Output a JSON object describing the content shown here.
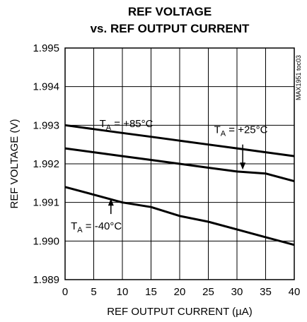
{
  "chart_data": {
    "type": "line",
    "title_line1": "REF VOLTAGE",
    "title_line2": "vs. REF OUTPUT CURRENT",
    "xlabel": "REF OUTPUT CURRENT (µA)",
    "ylabel": "REF VOLTAGE (V)",
    "xlim": [
      0,
      40
    ],
    "ylim": [
      1.989,
      1.995
    ],
    "x_ticks": [
      0,
      5,
      10,
      15,
      20,
      25,
      30,
      35,
      40
    ],
    "y_ticks": [
      1.989,
      1.99,
      1.991,
      1.992,
      1.993,
      1.994,
      1.995
    ],
    "y_tick_labels": [
      "1.989",
      "1.990",
      "1.991",
      "1.992",
      "1.993",
      "1.994",
      "1.995"
    ],
    "grid": true,
    "side_label": "MAX1951 toc03",
    "series": [
      {
        "id": "t85",
        "x": [
          0,
          5,
          10,
          15,
          20,
          25,
          30,
          35,
          40
        ],
        "y": [
          1.993,
          1.9929,
          1.9928,
          1.9927,
          1.9926,
          1.9925,
          1.9924,
          1.9923,
          1.9922
        ]
      },
      {
        "id": "t25",
        "x": [
          0,
          5,
          10,
          15,
          20,
          25,
          30,
          35,
          40
        ],
        "y": [
          1.9924,
          1.9923,
          1.9922,
          1.9921,
          1.992,
          1.9919,
          1.9918,
          1.99175,
          1.99155
        ]
      },
      {
        "id": "tm40",
        "x": [
          0,
          5,
          10,
          15,
          20,
          25,
          30,
          35,
          40
        ],
        "y": [
          1.9914,
          1.9912,
          1.991,
          1.99088,
          1.99065,
          1.9905,
          1.9903,
          1.9901,
          1.9899
        ]
      }
    ],
    "annotations": [
      {
        "id": "a85",
        "main": "T",
        "sub": "A",
        "rest": " = +85°C",
        "x": 6,
        "y": 1.99295,
        "arrow": false
      },
      {
        "id": "a25",
        "main": "T",
        "sub": "A",
        "rest": " = +25°C",
        "x": 26,
        "y": 1.9928,
        "arrow": true,
        "arrow_from": [
          31,
          1.9925
        ],
        "arrow_to": [
          31,
          1.99185
        ]
      },
      {
        "id": "am40",
        "main": "T",
        "sub": "A",
        "rest": " = -40°C",
        "x": 1,
        "y": 1.9903,
        "arrow": true,
        "arrow_from": [
          8,
          1.9907
        ],
        "arrow_to": [
          8,
          1.9911
        ]
      }
    ]
  }
}
